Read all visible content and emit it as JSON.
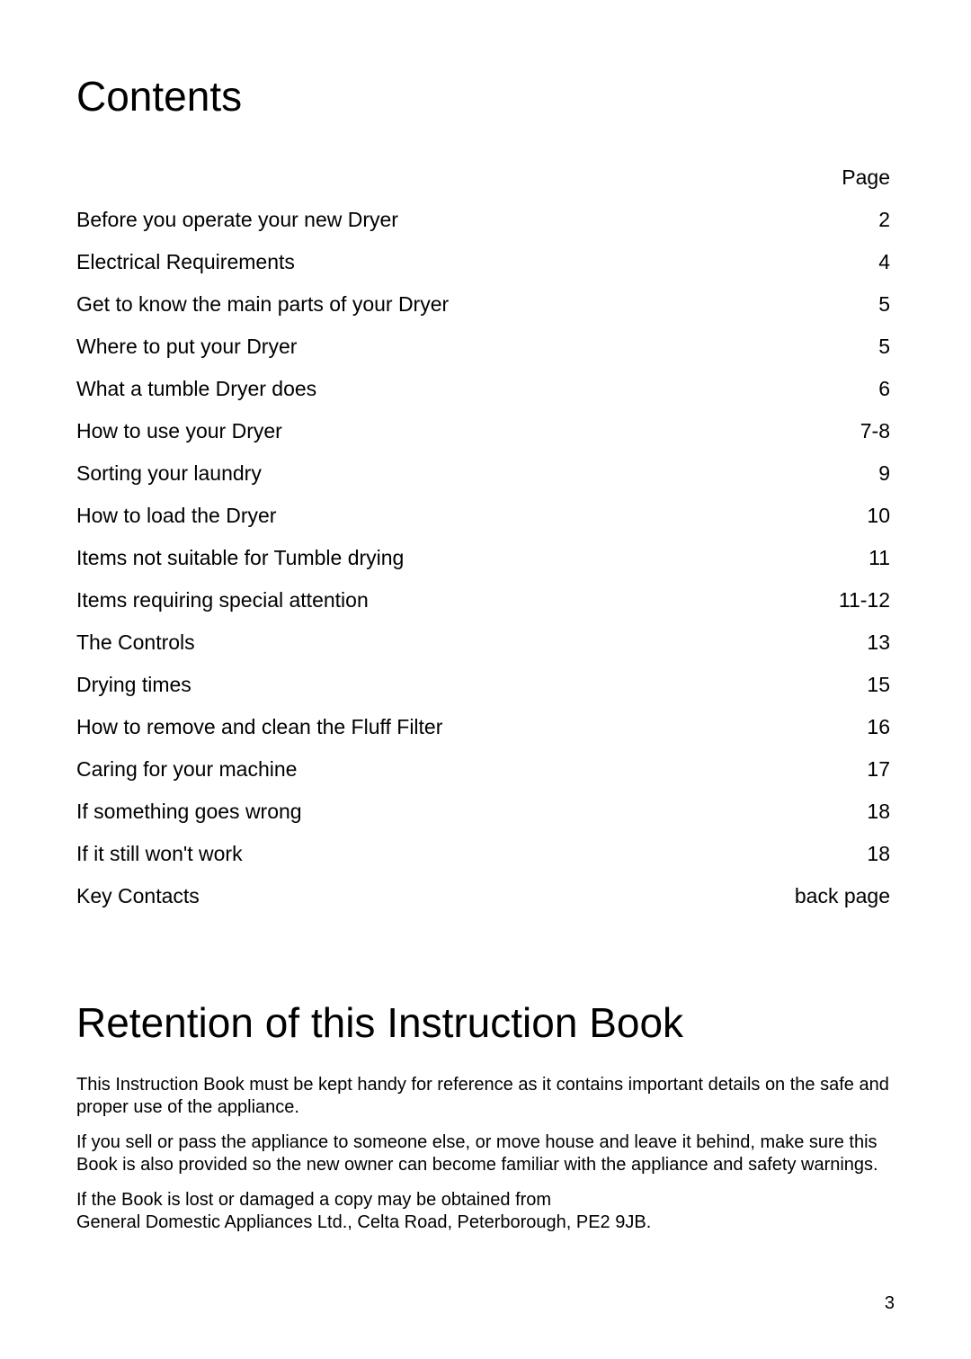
{
  "headings": {
    "contents": "Contents",
    "retention": "Retention of this Instruction Book"
  },
  "page_label": "Page",
  "toc": [
    {
      "title": "Before you operate your new Dryer",
      "page": "2"
    },
    {
      "title": "Electrical Requirements",
      "page": "4"
    },
    {
      "title": "Get to know the main parts of your Dryer",
      "page": "5"
    },
    {
      "title": "Where to put your Dryer",
      "page": "5"
    },
    {
      "title": "What a tumble Dryer does",
      "page": "6"
    },
    {
      "title": "How to use your Dryer",
      "page": "7-8"
    },
    {
      "title": "Sorting your laundry",
      "page": "9"
    },
    {
      "title": "How to load the Dryer",
      "page": "10"
    },
    {
      "title": "Items not suitable for Tumble drying",
      "page": "11"
    },
    {
      "title": "Items requiring special attention",
      "page": "11-12"
    },
    {
      "title": "The Controls",
      "page": "13"
    },
    {
      "title": "Drying times",
      "page": "15"
    },
    {
      "title": "How to remove and clean the Fluff Filter",
      "page": "16"
    },
    {
      "title": "Caring for your machine",
      "page": "17"
    },
    {
      "title": "If something goes wrong",
      "page": "18"
    },
    {
      "title": "If it still won't work",
      "page": "18"
    },
    {
      "title": "Key Contacts",
      "page": "back page"
    }
  ],
  "retention": {
    "p1": "This Instruction Book must be kept handy for reference as it contains important details on the safe and proper use of the appliance.",
    "p2": "If you sell or pass the appliance to someone else, or move house and leave it behind, make sure this Book is also provided so the new owner can become familiar with the appliance and safety warnings.",
    "p3a": "If the Book is lost or damaged a copy may be obtained from",
    "p3b": "General Domestic Appliances Ltd., Celta Road, Peterborough, PE2 9JB."
  },
  "page_number": "3",
  "colors": {
    "background": "#ffffff",
    "text": "#000000"
  },
  "fonts": {
    "heading_size": 46,
    "body_size": 23,
    "retention_para_size": 20
  }
}
